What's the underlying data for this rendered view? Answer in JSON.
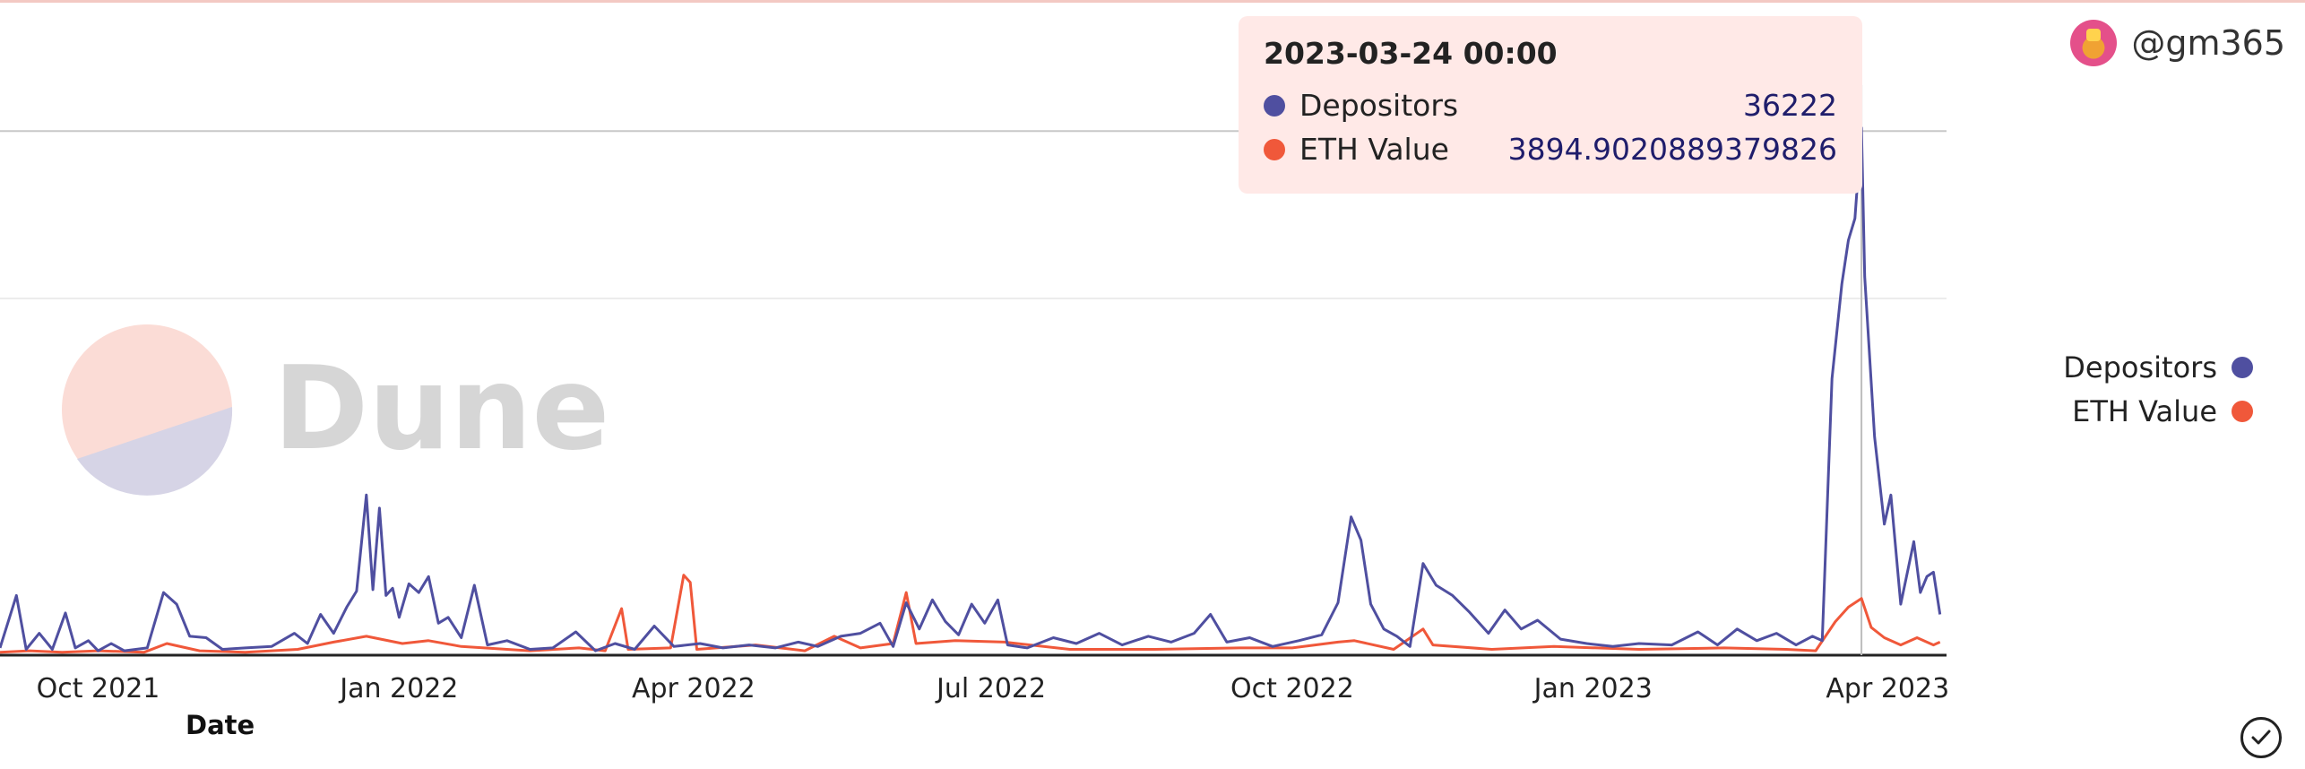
{
  "tooltip": {
    "title": "2023-03-24 00:00",
    "rows": [
      {
        "name": "Depositors",
        "value": "36222"
      },
      {
        "name": "ETH Value",
        "value": "3894.9020889379826"
      }
    ]
  },
  "user": {
    "handle": "@gm365"
  },
  "watermark": {
    "text": "Dune"
  },
  "legend": [
    {
      "name": "Depositors",
      "color": "#4f4fa0"
    },
    {
      "name": "ETH Value",
      "color": "#f0583a"
    }
  ],
  "colors": {
    "depositors": "#4f4fa0",
    "eth_value": "#f0583a",
    "tooltip_bg": "#ffe9e7"
  },
  "icons": {
    "confirm": "check-circle-icon"
  },
  "chart_data": {
    "type": "line",
    "xlabel": "Date",
    "ylabel": "",
    "title": "",
    "xlim": [
      "2021-09-01",
      "2023-04-19"
    ],
    "ylim": [
      0,
      45000
    ],
    "x_ticks": [
      "Oct 2021",
      "Jan 2022",
      "Apr 2022",
      "Jul 2022",
      "Oct 2022",
      "Jan 2023",
      "Apr 2023"
    ],
    "x_tick_dates": [
      "2021-10-01",
      "2022-01-01",
      "2022-04-01",
      "2022-07-01",
      "2022-10-01",
      "2023-01-01",
      "2023-04-01"
    ],
    "gridlines_y": [
      36000,
      24500
    ],
    "hover_date": "2023-03-24",
    "series": [
      {
        "name": "Depositors",
        "points": [
          [
            "2021-09-01",
            500
          ],
          [
            "2021-09-06",
            4100
          ],
          [
            "2021-09-09",
            400
          ],
          [
            "2021-09-13",
            1500
          ],
          [
            "2021-09-17",
            400
          ],
          [
            "2021-09-21",
            2900
          ],
          [
            "2021-09-24",
            500
          ],
          [
            "2021-09-28",
            1000
          ],
          [
            "2021-10-01",
            300
          ],
          [
            "2021-10-05",
            800
          ],
          [
            "2021-10-09",
            300
          ],
          [
            "2021-10-16",
            500
          ],
          [
            "2021-10-21",
            4300
          ],
          [
            "2021-10-25",
            3500
          ],
          [
            "2021-10-29",
            1300
          ],
          [
            "2021-11-03",
            1200
          ],
          [
            "2021-11-08",
            400
          ],
          [
            "2021-11-15",
            500
          ],
          [
            "2021-11-23",
            600
          ],
          [
            "2021-11-30",
            1500
          ],
          [
            "2021-12-04",
            800
          ],
          [
            "2021-12-08",
            2800
          ],
          [
            "2021-12-12",
            1500
          ],
          [
            "2021-12-16",
            3300
          ],
          [
            "2021-12-19",
            4400
          ],
          [
            "2021-12-22",
            11000
          ],
          [
            "2021-12-24",
            4500
          ],
          [
            "2021-12-26",
            10100
          ],
          [
            "2021-12-28",
            4100
          ],
          [
            "2021-12-30",
            4600
          ],
          [
            "2022-01-01",
            2600
          ],
          [
            "2022-01-04",
            4900
          ],
          [
            "2022-01-07",
            4300
          ],
          [
            "2022-01-10",
            5400
          ],
          [
            "2022-01-13",
            2200
          ],
          [
            "2022-01-16",
            2600
          ],
          [
            "2022-01-20",
            1200
          ],
          [
            "2022-01-24",
            4800
          ],
          [
            "2022-01-28",
            700
          ],
          [
            "2022-02-03",
            1000
          ],
          [
            "2022-02-10",
            400
          ],
          [
            "2022-02-17",
            500
          ],
          [
            "2022-02-24",
            1600
          ],
          [
            "2022-03-02",
            300
          ],
          [
            "2022-03-08",
            800
          ],
          [
            "2022-03-14",
            400
          ],
          [
            "2022-03-20",
            2000
          ],
          [
            "2022-03-26",
            600
          ],
          [
            "2022-04-03",
            800
          ],
          [
            "2022-04-10",
            500
          ],
          [
            "2022-04-18",
            700
          ],
          [
            "2022-04-26",
            500
          ],
          [
            "2022-05-03",
            900
          ],
          [
            "2022-05-09",
            600
          ],
          [
            "2022-05-16",
            1300
          ],
          [
            "2022-05-22",
            1500
          ],
          [
            "2022-05-28",
            2200
          ],
          [
            "2022-06-01",
            600
          ],
          [
            "2022-06-05",
            3600
          ],
          [
            "2022-06-09",
            1800
          ],
          [
            "2022-06-13",
            3800
          ],
          [
            "2022-06-17",
            2300
          ],
          [
            "2022-06-21",
            1400
          ],
          [
            "2022-06-25",
            3500
          ],
          [
            "2022-06-29",
            2200
          ],
          [
            "2022-07-03",
            3800
          ],
          [
            "2022-07-06",
            700
          ],
          [
            "2022-07-12",
            500
          ],
          [
            "2022-07-20",
            1200
          ],
          [
            "2022-07-27",
            800
          ],
          [
            "2022-08-03",
            1500
          ],
          [
            "2022-08-10",
            700
          ],
          [
            "2022-08-18",
            1300
          ],
          [
            "2022-08-25",
            900
          ],
          [
            "2022-09-01",
            1500
          ],
          [
            "2022-09-06",
            2800
          ],
          [
            "2022-09-11",
            900
          ],
          [
            "2022-09-18",
            1200
          ],
          [
            "2022-09-25",
            600
          ],
          [
            "2022-10-03",
            1000
          ],
          [
            "2022-10-10",
            1400
          ],
          [
            "2022-10-15",
            3600
          ],
          [
            "2022-10-19",
            9500
          ],
          [
            "2022-10-22",
            7900
          ],
          [
            "2022-10-25",
            3500
          ],
          [
            "2022-10-29",
            1800
          ],
          [
            "2022-11-02",
            1300
          ],
          [
            "2022-11-06",
            600
          ],
          [
            "2022-11-10",
            6300
          ],
          [
            "2022-11-14",
            4800
          ],
          [
            "2022-11-19",
            4100
          ],
          [
            "2022-11-24",
            3000
          ],
          [
            "2022-11-30",
            1500
          ],
          [
            "2022-12-05",
            3100
          ],
          [
            "2022-12-10",
            1800
          ],
          [
            "2022-12-15",
            2400
          ],
          [
            "2022-12-22",
            1100
          ],
          [
            "2022-12-30",
            800
          ],
          [
            "2023-01-07",
            600
          ],
          [
            "2023-01-15",
            800
          ],
          [
            "2023-01-25",
            700
          ],
          [
            "2023-02-02",
            1600
          ],
          [
            "2023-02-08",
            700
          ],
          [
            "2023-02-14",
            1800
          ],
          [
            "2023-02-20",
            1000
          ],
          [
            "2023-02-26",
            1500
          ],
          [
            "2023-03-04",
            700
          ],
          [
            "2023-03-09",
            1300
          ],
          [
            "2023-03-12",
            1000
          ],
          [
            "2023-03-15",
            19000
          ],
          [
            "2023-03-18",
            25500
          ],
          [
            "2023-03-20",
            28500
          ],
          [
            "2023-03-22",
            30000
          ],
          [
            "2023-03-24",
            36222
          ],
          [
            "2023-03-25",
            26000
          ],
          [
            "2023-03-28",
            15000
          ],
          [
            "2023-03-31",
            9000
          ],
          [
            "2023-04-02",
            11000
          ],
          [
            "2023-04-05",
            3500
          ],
          [
            "2023-04-09",
            7800
          ],
          [
            "2023-04-11",
            4300
          ],
          [
            "2023-04-13",
            5400
          ],
          [
            "2023-04-15",
            5700
          ],
          [
            "2023-04-17",
            2800
          ]
        ]
      },
      {
        "name": "ETH Value",
        "points": [
          [
            "2021-09-01",
            200
          ],
          [
            "2021-09-10",
            300
          ],
          [
            "2021-09-20",
            200
          ],
          [
            "2021-10-01",
            300
          ],
          [
            "2021-10-15",
            200
          ],
          [
            "2021-10-22",
            800
          ],
          [
            "2021-11-01",
            300
          ],
          [
            "2021-11-15",
            200
          ],
          [
            "2021-12-01",
            400
          ],
          [
            "2021-12-12",
            900
          ],
          [
            "2021-12-22",
            1300
          ],
          [
            "2022-01-02",
            800
          ],
          [
            "2022-01-10",
            1000
          ],
          [
            "2022-01-20",
            600
          ],
          [
            "2022-02-10",
            300
          ],
          [
            "2022-02-25",
            500
          ],
          [
            "2022-03-05",
            300
          ],
          [
            "2022-03-10",
            3200
          ],
          [
            "2022-03-12",
            400
          ],
          [
            "2022-03-25",
            500
          ],
          [
            "2022-03-29",
            5500
          ],
          [
            "2022-03-31",
            5000
          ],
          [
            "2022-04-02",
            400
          ],
          [
            "2022-04-20",
            700
          ],
          [
            "2022-05-05",
            300
          ],
          [
            "2022-05-14",
            1300
          ],
          [
            "2022-05-22",
            500
          ],
          [
            "2022-06-01",
            800
          ],
          [
            "2022-06-05",
            4300
          ],
          [
            "2022-06-08",
            800
          ],
          [
            "2022-06-20",
            1000
          ],
          [
            "2022-07-05",
            900
          ],
          [
            "2022-07-25",
            400
          ],
          [
            "2022-08-20",
            400
          ],
          [
            "2022-09-15",
            500
          ],
          [
            "2022-10-01",
            500
          ],
          [
            "2022-10-15",
            900
          ],
          [
            "2022-10-20",
            1000
          ],
          [
            "2022-11-01",
            400
          ],
          [
            "2022-11-10",
            1800
          ],
          [
            "2022-11-13",
            700
          ],
          [
            "2022-12-01",
            400
          ],
          [
            "2022-12-20",
            600
          ],
          [
            "2023-01-15",
            400
          ],
          [
            "2023-02-10",
            500
          ],
          [
            "2023-03-01",
            400
          ],
          [
            "2023-03-10",
            300
          ],
          [
            "2023-03-16",
            2300
          ],
          [
            "2023-03-20",
            3300
          ],
          [
            "2023-03-24",
            3894.9020889379826
          ],
          [
            "2023-03-27",
            1900
          ],
          [
            "2023-03-31",
            1200
          ],
          [
            "2023-04-05",
            700
          ],
          [
            "2023-04-10",
            1200
          ],
          [
            "2023-04-15",
            700
          ],
          [
            "2023-04-17",
            900
          ]
        ]
      }
    ]
  }
}
